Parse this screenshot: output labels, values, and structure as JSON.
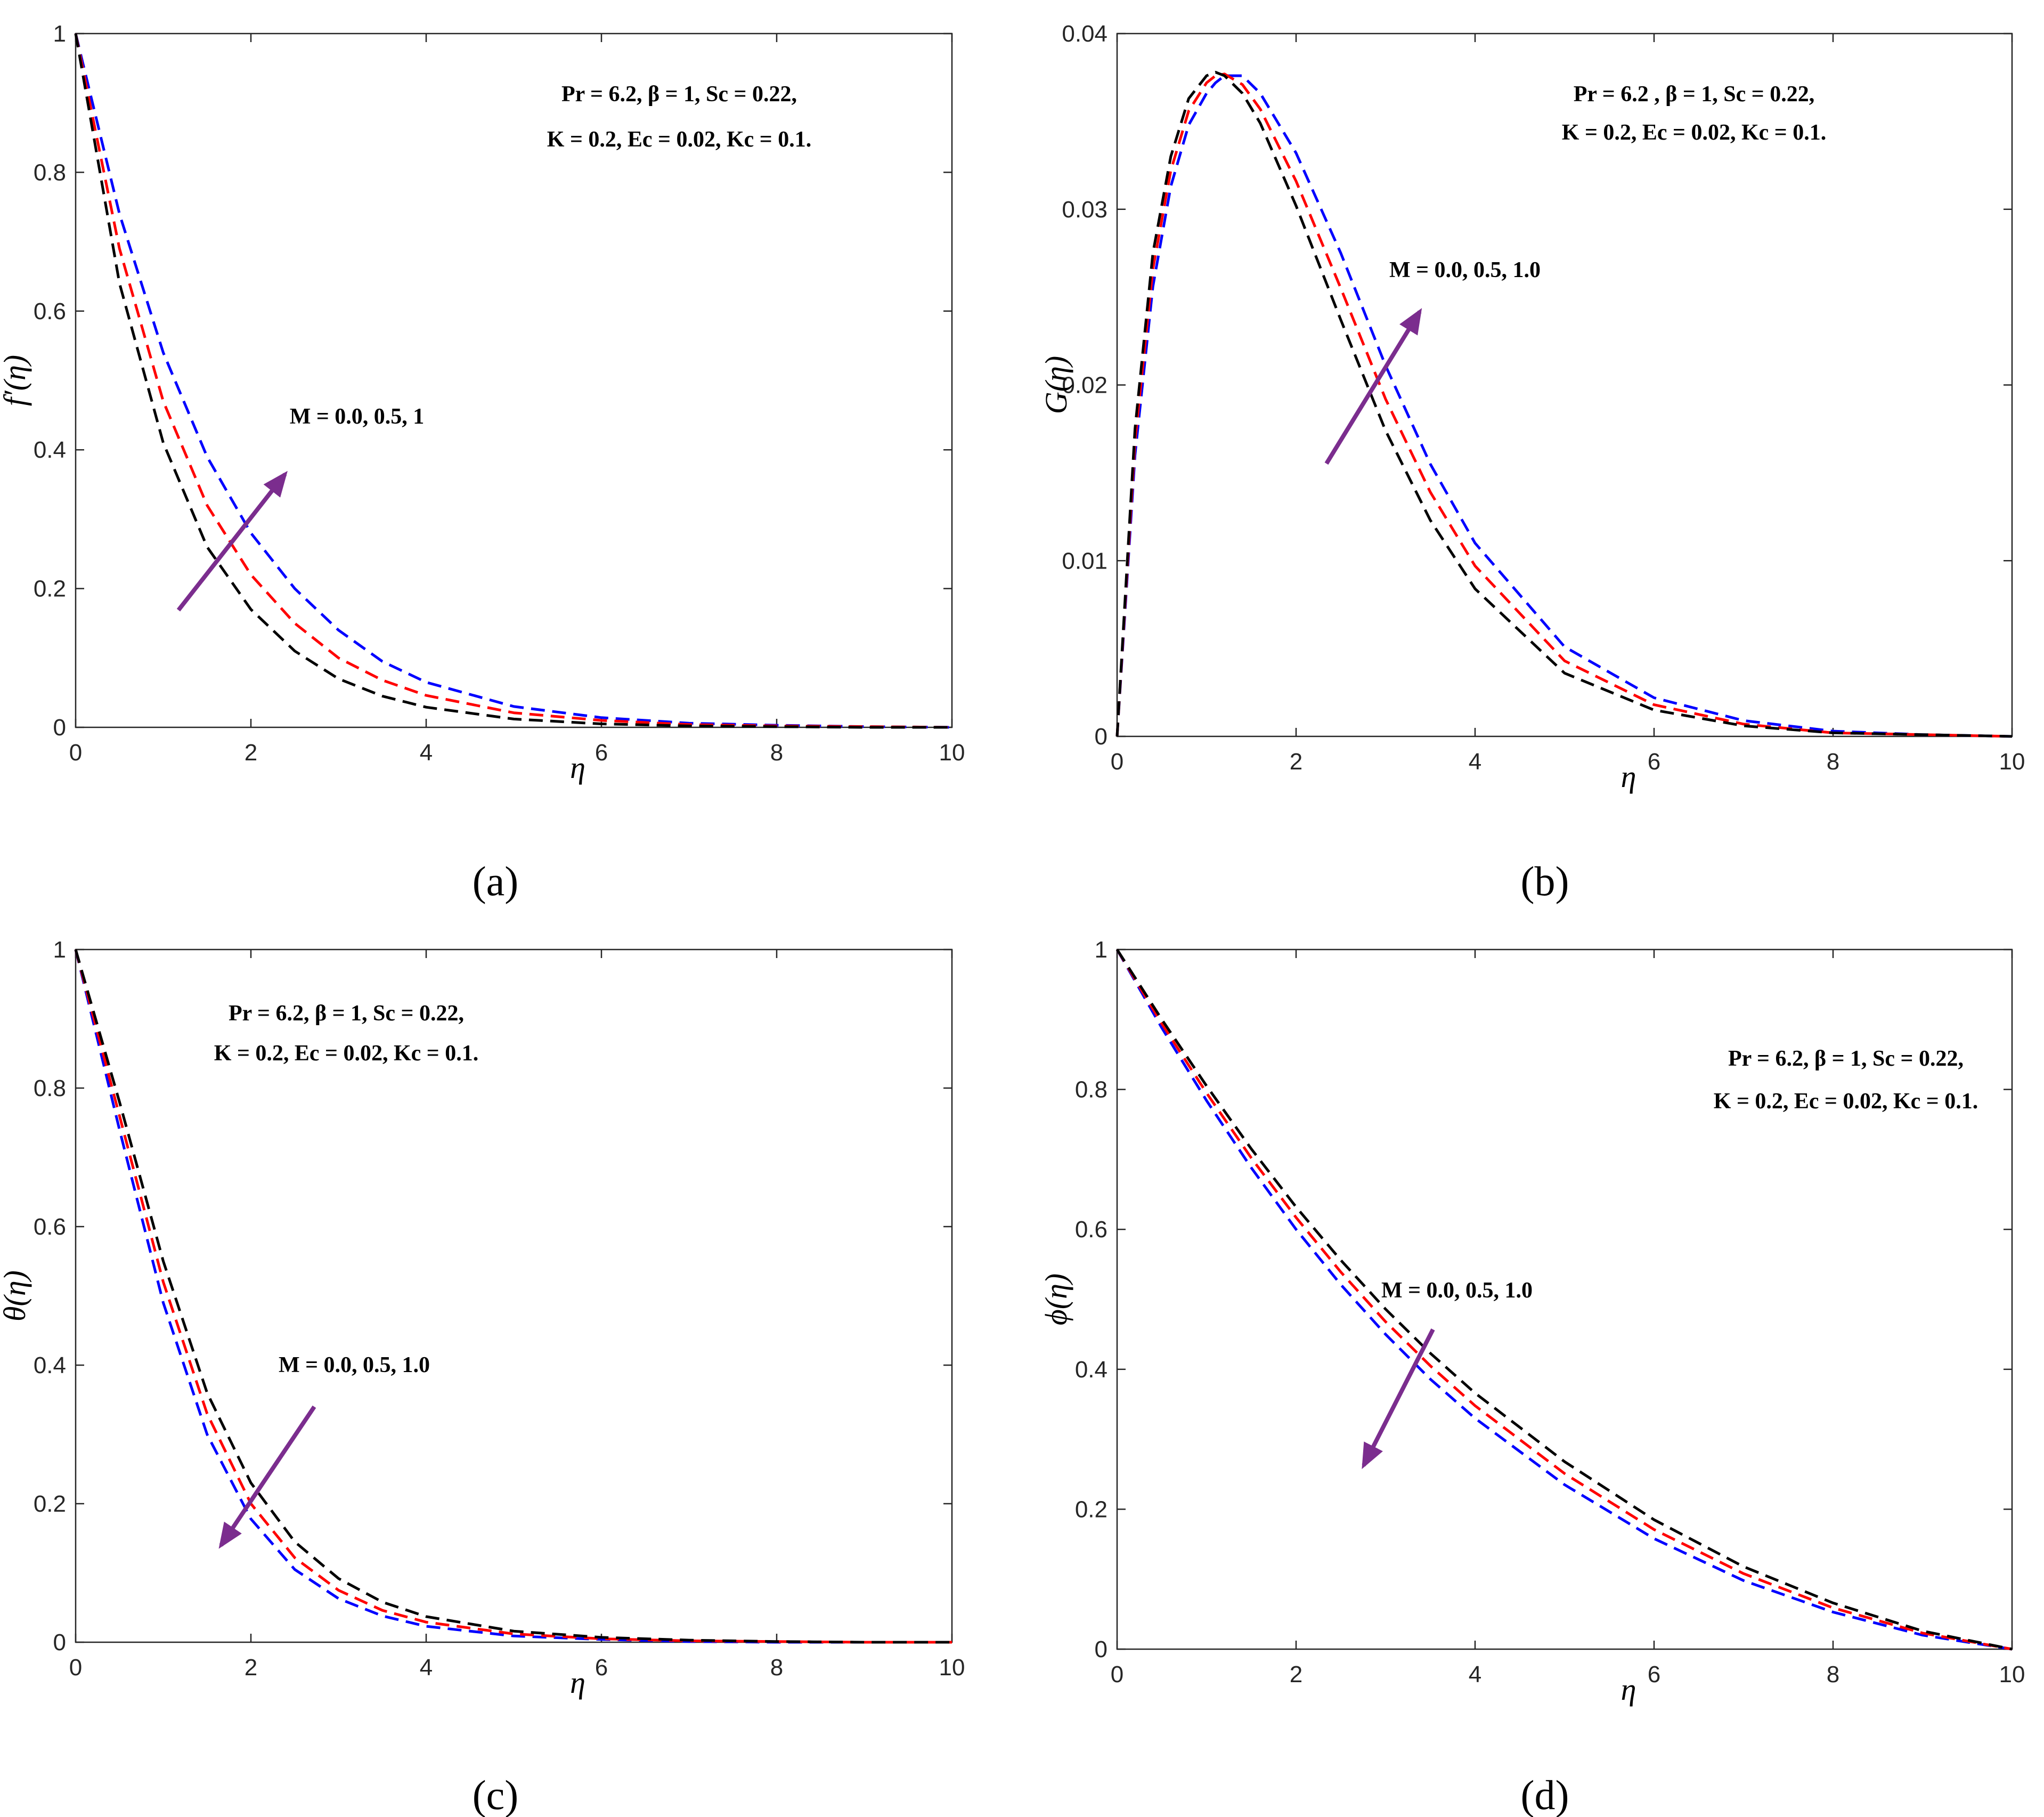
{
  "colors": {
    "black_curve": "#000000",
    "red_curve": "#ff0000",
    "blue_curve": "#0000ff",
    "arrow": "#7b2d8e",
    "axis": "#262626"
  },
  "chart_data": [
    {
      "type": "line",
      "panel": "(a)",
      "ylabel": "f′(η)",
      "xlabel": "η",
      "xlim": [
        0,
        10
      ],
      "ylim": [
        0,
        1
      ],
      "xticks": [
        "0",
        "2",
        "4",
        "6",
        "8",
        "10"
      ],
      "yticks": [
        "0",
        "0.2",
        "0.4",
        "0.6",
        "0.8",
        "1"
      ],
      "params_line1": "Pr = 6.2, β = 1, Sc = 0.22,",
      "params_line2": "K = 0.2, Ec = 0.02, Kc = 0.1.",
      "m_label": "M = 0.0, 0.5, 1",
      "arrow_direction": "up",
      "x": [
        0,
        0.5,
        1,
        1.5,
        2,
        2.5,
        3,
        3.5,
        4,
        5,
        6,
        7,
        8,
        9,
        10
      ],
      "series": [
        {
          "name": "black",
          "values": [
            1,
            0.64,
            0.41,
            0.26,
            0.17,
            0.11,
            0.07,
            0.045,
            0.029,
            0.012,
            0.005,
            0.002,
            0.001,
            0,
            0
          ]
        },
        {
          "name": "red",
          "values": [
            1,
            0.69,
            0.47,
            0.32,
            0.22,
            0.15,
            0.1,
            0.068,
            0.046,
            0.021,
            0.01,
            0.004,
            0.002,
            0.001,
            0
          ]
        },
        {
          "name": "blue",
          "values": [
            1,
            0.74,
            0.54,
            0.39,
            0.28,
            0.2,
            0.14,
            0.095,
            0.065,
            0.03,
            0.014,
            0.006,
            0.003,
            0.001,
            0
          ]
        }
      ]
    },
    {
      "type": "line",
      "panel": "(b)",
      "ylabel": "G(η)",
      "xlabel": "η",
      "xlim": [
        0,
        10
      ],
      "ylim": [
        0,
        0.04
      ],
      "xticks": [
        "0",
        "2",
        "4",
        "6",
        "8",
        "10"
      ],
      "yticks": [
        "0",
        "0.01",
        "0.02",
        "0.03",
        "0.04"
      ],
      "params_line1": "Pr = 6.2 , β = 1, Sc = 0.22,",
      "params_line2": "K = 0.2, Ec = 0.02, Kc = 0.1.",
      "m_label": "M = 0.0, 0.5, 1.0",
      "arrow_direction": "up",
      "x": [
        0,
        0.2,
        0.4,
        0.6,
        0.8,
        1.0,
        1.1,
        1.2,
        1.4,
        1.6,
        2.0,
        2.5,
        3.0,
        3.5,
        4.0,
        5.0,
        6.0,
        7.0,
        8.0,
        9.0,
        10.0
      ],
      "series": [
        {
          "name": "black",
          "values": [
            0,
            0.0175,
            0.0275,
            0.033,
            0.0363,
            0.0376,
            0.0378,
            0.0376,
            0.0366,
            0.0349,
            0.0302,
            0.0237,
            0.0174,
            0.0123,
            0.0084,
            0.0036,
            0.0015,
            0.0006,
            0.0002,
            0.0001,
            0
          ]
        },
        {
          "name": "red",
          "values": [
            0,
            0.0168,
            0.0266,
            0.0322,
            0.0356,
            0.0372,
            0.0376,
            0.0377,
            0.0371,
            0.0357,
            0.0316,
            0.0255,
            0.0192,
            0.0139,
            0.0097,
            0.0043,
            0.0018,
            0.0007,
            0.0002,
            0.0001,
            0
          ]
        },
        {
          "name": "blue",
          "values": [
            0,
            0.016,
            0.0256,
            0.0313,
            0.0348,
            0.0366,
            0.0372,
            0.0376,
            0.0376,
            0.0366,
            0.0332,
            0.0275,
            0.0211,
            0.0155,
            0.011,
            0.0051,
            0.0022,
            0.0009,
            0.0003,
            0.0001,
            0
          ]
        }
      ]
    },
    {
      "type": "line",
      "panel": "(c)",
      "ylabel": "θ(η)",
      "xlabel": "η",
      "xlim": [
        0,
        10
      ],
      "ylim": [
        0,
        1
      ],
      "xticks": [
        "0",
        "2",
        "4",
        "6",
        "8",
        "10"
      ],
      "yticks": [
        "0",
        "0.2",
        "0.4",
        "0.6",
        "0.8",
        "1"
      ],
      "params_line1": "Pr = 6.2, β = 1, Sc = 0.22,",
      "params_line2": "K = 0.2, Ec = 0.02, Kc = 0.1.",
      "m_label": "M = 0.0, 0.5, 1.0",
      "arrow_direction": "down",
      "x": [
        0,
        0.5,
        1,
        1.5,
        2,
        2.5,
        3,
        3.5,
        4,
        5,
        6,
        7,
        8,
        9,
        10
      ],
      "series": [
        {
          "name": "black",
          "values": [
            1,
            0.78,
            0.55,
            0.36,
            0.23,
            0.145,
            0.092,
            0.058,
            0.037,
            0.016,
            0.007,
            0.003,
            0.001,
            0,
            0
          ]
        },
        {
          "name": "red",
          "values": [
            1,
            0.76,
            0.52,
            0.33,
            0.2,
            0.122,
            0.075,
            0.046,
            0.029,
            0.012,
            0.005,
            0.002,
            0.001,
            0,
            0
          ]
        },
        {
          "name": "blue",
          "values": [
            1,
            0.74,
            0.49,
            0.3,
            0.178,
            0.105,
            0.063,
            0.038,
            0.023,
            0.009,
            0.004,
            0.001,
            0,
            0,
            0
          ]
        }
      ]
    },
    {
      "type": "line",
      "panel": "(d)",
      "ylabel": "ϕ(η)",
      "xlabel": "η",
      "xlim": [
        0,
        10
      ],
      "ylim": [
        0,
        1
      ],
      "xticks": [
        "0",
        "2",
        "4",
        "6",
        "8",
        "10"
      ],
      "yticks": [
        "0",
        "0.2",
        "0.4",
        "0.6",
        "0.8",
        "1"
      ],
      "params_line1": "Pr = 6.2, β = 1, Sc = 0.22,",
      "params_line2": "K = 0.2, Ec = 0.02, Kc = 0.1.",
      "m_label": "M = 0.0, 0.5, 1.0",
      "arrow_direction": "down",
      "x": [
        0,
        0.5,
        1,
        1.5,
        2,
        2.5,
        3,
        3.5,
        4,
        5,
        6,
        7,
        8,
        9,
        10
      ],
      "series": [
        {
          "name": "black",
          "values": [
            1,
            0.9,
            0.805,
            0.715,
            0.632,
            0.556,
            0.486,
            0.423,
            0.366,
            0.268,
            0.185,
            0.118,
            0.066,
            0.026,
            0
          ]
        },
        {
          "name": "red",
          "values": [
            1,
            0.894,
            0.795,
            0.702,
            0.617,
            0.539,
            0.468,
            0.405,
            0.348,
            0.251,
            0.171,
            0.108,
            0.059,
            0.023,
            0
          ]
        },
        {
          "name": "blue",
          "values": [
            1,
            0.888,
            0.784,
            0.688,
            0.6,
            0.521,
            0.45,
            0.386,
            0.33,
            0.235,
            0.158,
            0.098,
            0.053,
            0.02,
            0
          ]
        }
      ]
    }
  ]
}
